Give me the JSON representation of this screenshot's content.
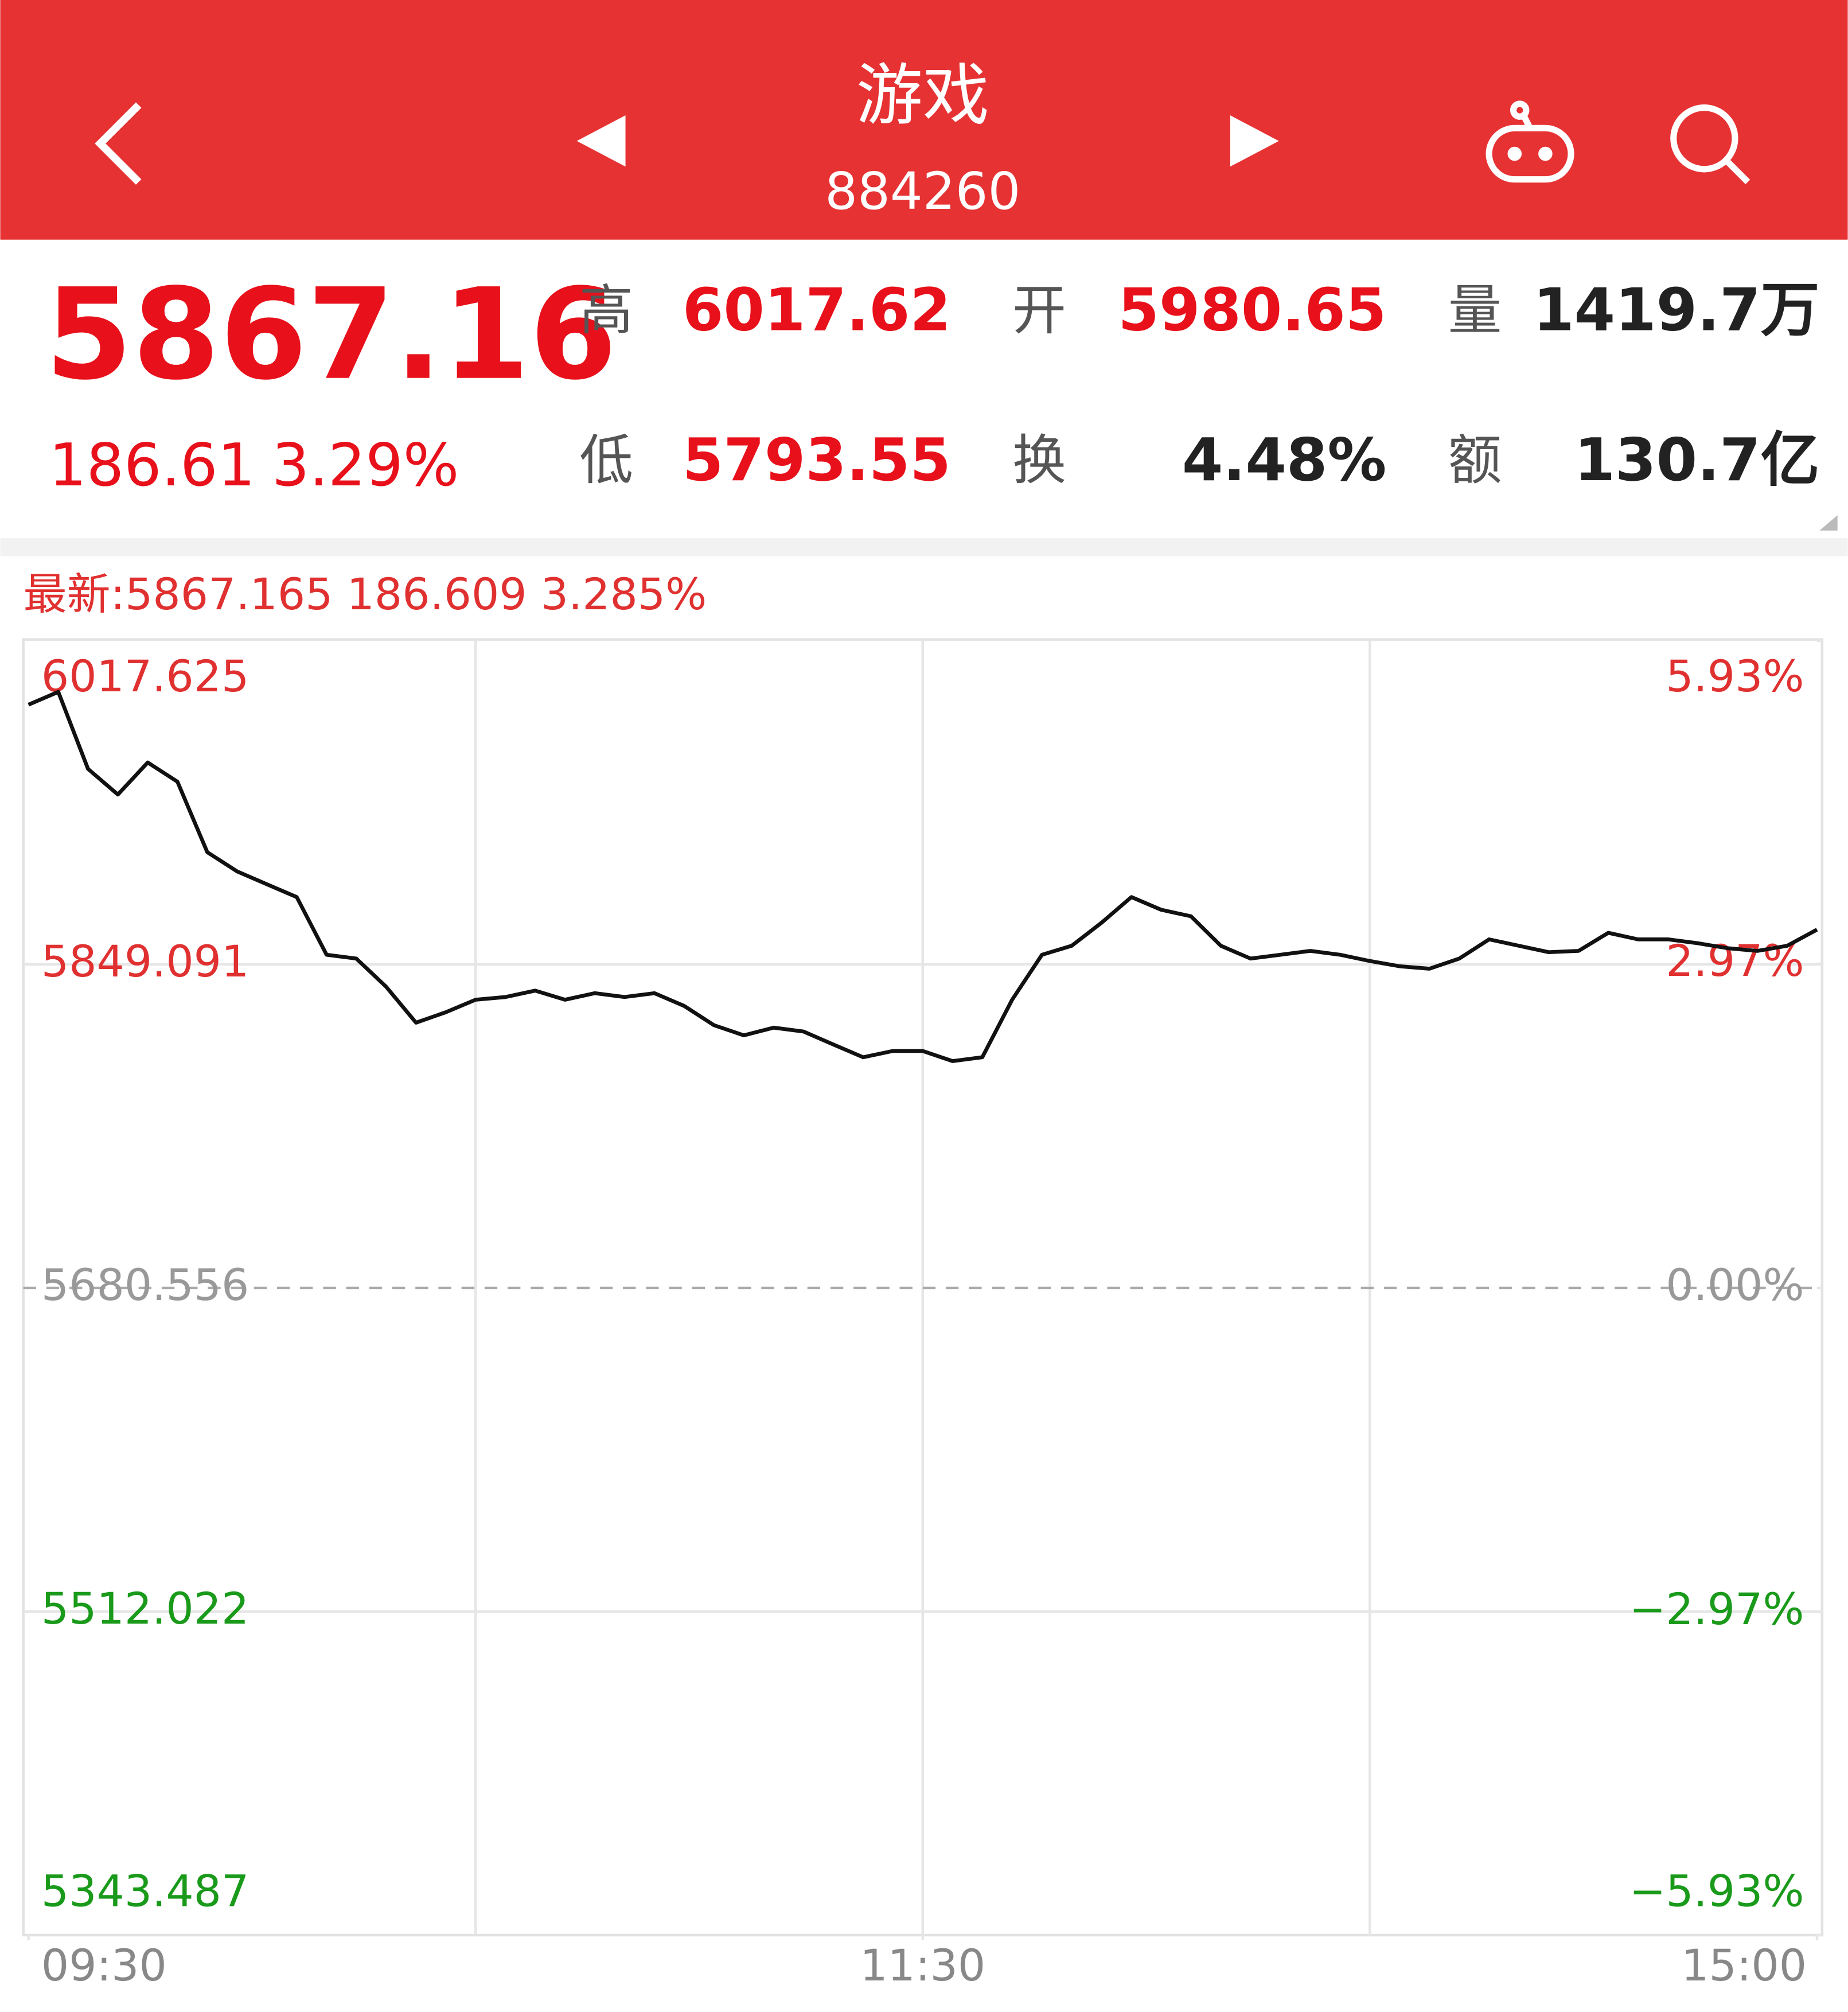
{
  "header": {
    "title": "游戏",
    "code": "884260"
  },
  "quote": {
    "price": "5867.16",
    "change": "186.61",
    "change_pct": "3.29%",
    "stats": [
      {
        "label": "高",
        "value": "6017.62",
        "color": "#e8101a"
      },
      {
        "label": "开",
        "value": "5980.65",
        "color": "#e8101a"
      },
      {
        "label": "量",
        "value": "1419.7万",
        "color": "#222222"
      },
      {
        "label": "低",
        "value": "5793.55",
        "color": "#e8101a"
      },
      {
        "label": "换",
        "value": "4.48%",
        "color": "#222222"
      },
      {
        "label": "额",
        "value": "130.7亿",
        "color": "#222222"
      }
    ]
  },
  "chart_data": {
    "type": "line",
    "latest": "最新:5867.165 186.609 3.285%",
    "color": "#111111",
    "x": [
      0,
      4,
      8,
      12,
      16,
      20,
      24,
      28,
      32,
      36,
      40,
      44,
      48,
      52,
      56,
      60,
      64,
      68,
      72,
      76,
      80,
      84,
      88,
      92,
      96,
      100,
      104,
      108,
      112,
      116,
      120,
      124,
      128,
      132,
      136,
      140,
      144,
      148,
      152,
      156,
      160,
      164,
      168,
      172,
      176,
      180,
      184,
      188,
      192,
      196,
      200,
      204,
      208,
      212,
      216,
      220,
      224,
      228,
      232,
      236,
      240
    ],
    "values": [
      5984.3,
      5991.0,
      5950.9,
      5937.5,
      5954.2,
      5944.2,
      5907.5,
      5897.5,
      5890.8,
      5884.1,
      5854.1,
      5852.1,
      5837.4,
      5818.7,
      5824.1,
      5830.7,
      5832.1,
      5835.4,
      5830.7,
      5834.1,
      5832.1,
      5834.1,
      5827.4,
      5817.4,
      5812.1,
      5816.1,
      5814.1,
      5807.4,
      5800.7,
      5804.0,
      5804.0,
      5798.7,
      5800.7,
      5830.7,
      5854.1,
      5858.8,
      5870.8,
      5884.1,
      5877.5,
      5874.1,
      5858.8,
      5852.1,
      5854.1,
      5856.1,
      5854.1,
      5850.8,
      5848.1,
      5846.8,
      5852.1,
      5862.1,
      5858.8,
      5855.4,
      5856.1,
      5865.5,
      5862.1,
      5862.1,
      5860.1,
      5857.5,
      5856.1,
      5858.8,
      5867.2
    ],
    "xlim": [
      0,
      240
    ],
    "xticks": [
      {
        "value": 0,
        "label": "09:30"
      },
      {
        "value": 120,
        "label": "11:30"
      },
      {
        "value": 240,
        "label": "15:00"
      }
    ],
    "xgrid": [
      60,
      120,
      180
    ],
    "ylim": [
      5343.487,
      6017.625
    ],
    "yticks": [
      6017.625,
      5849.091,
      5680.556,
      5512.022,
      5343.487
    ],
    "y2lim": [
      -5.93,
      5.93
    ],
    "y2ticks": [
      {
        "value": 5.93,
        "label": "5.93%"
      },
      {
        "value": 2.97,
        "label": "2.97%"
      },
      {
        "value": 0,
        "label": "0.00%"
      },
      {
        "value": -2.97,
        "label": "−2.97%"
      },
      {
        "value": -5.93,
        "label": "−5.93%"
      }
    ],
    "grid": true
  }
}
